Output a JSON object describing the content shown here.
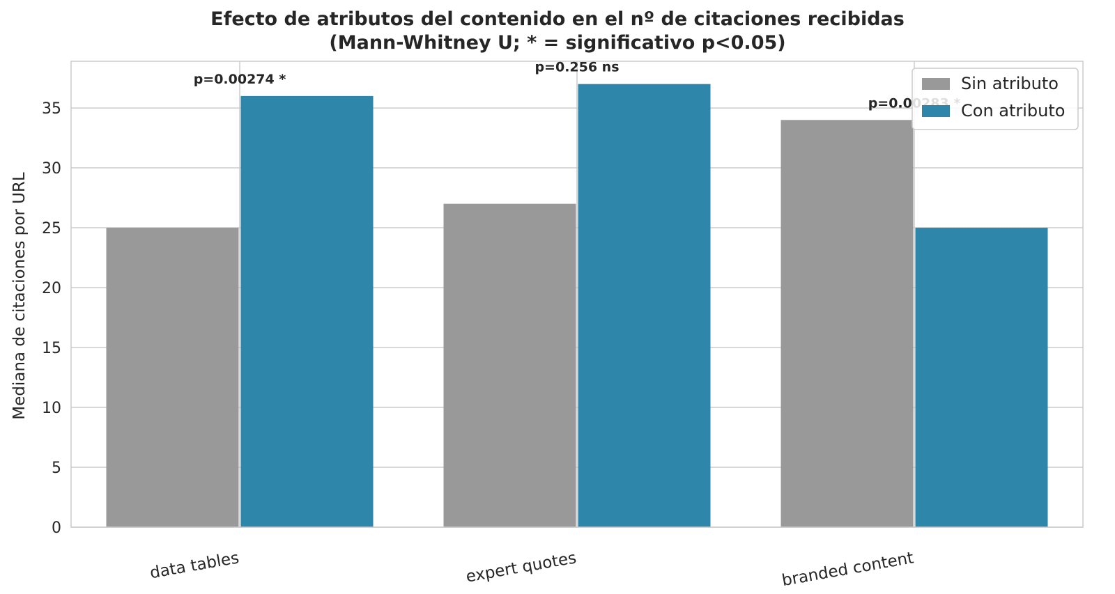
{
  "chart_data": {
    "type": "bar",
    "title_line1": "Efecto de atributos del contenido en el nº de citaciones recibidas",
    "title_line2": "(Mann-Whitney U; * = significativo p<0.05)",
    "xlabel": "",
    "ylabel": "Mediana de citaciones por URL",
    "categories": [
      "data tables",
      "expert quotes",
      "branded content"
    ],
    "series": [
      {
        "name": "Sin atributo",
        "values": [
          25,
          27,
          34
        ],
        "color": "#999999"
      },
      {
        "name": "Con atributo",
        "values": [
          36,
          37,
          25
        ],
        "color": "#2e86ab"
      }
    ],
    "annotations": [
      "p=0.00274 *",
      "p=0.256 ns",
      "p=0.00283 *"
    ],
    "ylim": [
      0,
      38.9
    ],
    "yticks": [
      0,
      5,
      10,
      15,
      20,
      25,
      30,
      35
    ],
    "grid": true,
    "legend_position": "top-right"
  }
}
